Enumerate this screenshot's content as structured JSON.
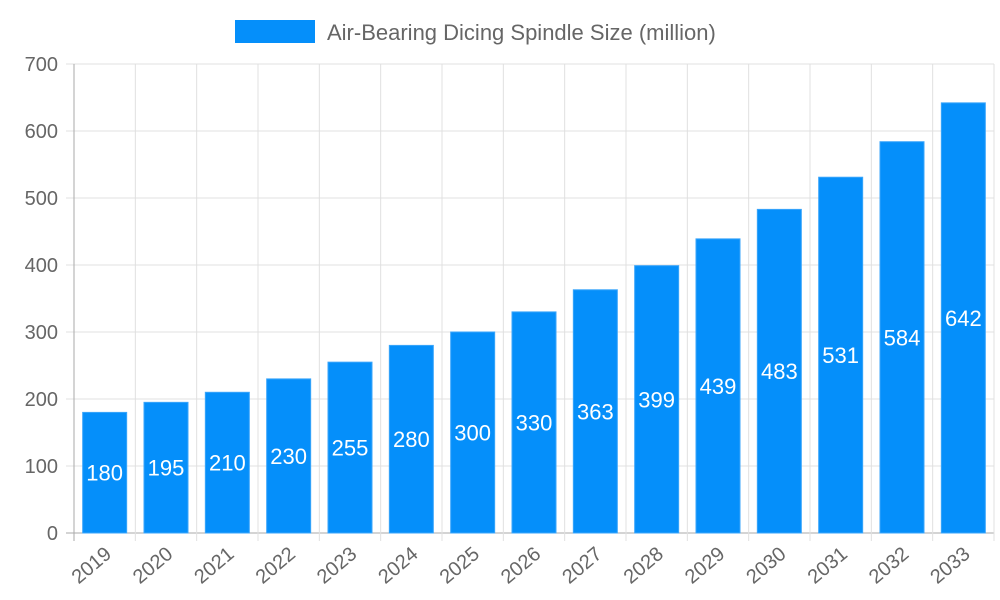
{
  "chart_data": {
    "type": "bar",
    "categories": [
      "2019",
      "2020",
      "2021",
      "2022",
      "2023",
      "2024",
      "2025",
      "2026",
      "2027",
      "2028",
      "2029",
      "2030",
      "2031",
      "2032",
      "2033"
    ],
    "series": [
      {
        "name": "Air-Bearing Dicing Spindle Size (million)",
        "values": [
          180,
          195,
          210,
          230,
          255,
          280,
          300,
          330,
          363,
          399,
          439,
          483,
          531,
          584,
          642
        ],
        "color": "#058ffa"
      }
    ],
    "xlabel": "",
    "ylabel": "",
    "ylim": [
      0,
      700
    ],
    "yticks": [
      0,
      100,
      200,
      300,
      400,
      500,
      600,
      700
    ],
    "grid": true,
    "legend": "top-center",
    "data_labels": "center"
  }
}
